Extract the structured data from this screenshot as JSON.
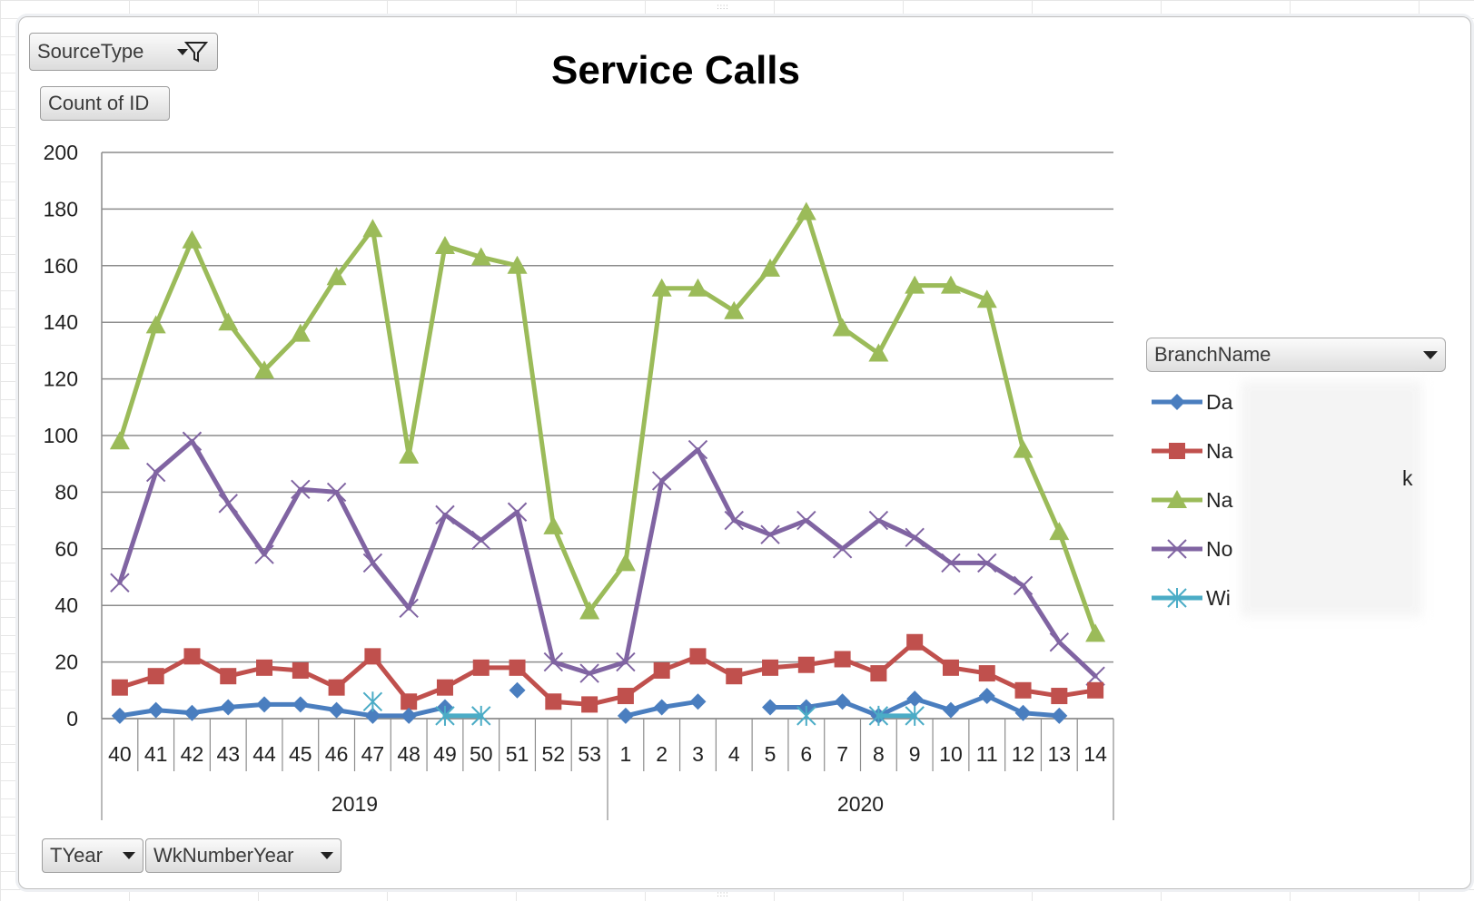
{
  "field_buttons": {
    "source_type": "SourceType",
    "count_of_id": "Count of ID",
    "tyear": "TYear",
    "wk_number_year": "WkNumberYear"
  },
  "legend": {
    "header": "BranchName",
    "items": [
      {
        "label": "Da",
        "color": "#4a7ebf",
        "marker": "diamond"
      },
      {
        "label": "Na",
        "color": "#c0504d",
        "marker": "square"
      },
      {
        "label": "Na",
        "color": "#9bbb59",
        "marker": "triangle",
        "tail": "k"
      },
      {
        "label": "No",
        "color": "#8064a2",
        "marker": "x"
      },
      {
        "label": "Wi",
        "color": "#4bacc6",
        "marker": "star"
      }
    ]
  },
  "chart_data": {
    "type": "line",
    "title": "Service Calls",
    "ylim": [
      0,
      200
    ],
    "yticks": [
      0,
      20,
      40,
      60,
      80,
      100,
      120,
      140,
      160,
      180,
      200
    ],
    "grid": true,
    "legend_position": "right",
    "categories": [
      "40",
      "41",
      "42",
      "43",
      "44",
      "45",
      "46",
      "47",
      "48",
      "49",
      "50",
      "51",
      "52",
      "53",
      "1",
      "2",
      "3",
      "4",
      "5",
      "6",
      "7",
      "8",
      "9",
      "10",
      "11",
      "12",
      "13",
      "14"
    ],
    "groups": [
      {
        "label": "2019",
        "count": 14
      },
      {
        "label": "2020",
        "count": 14
      }
    ],
    "series": [
      {
        "name": "Da",
        "color": "#4a7ebf",
        "marker": "diamond",
        "values": [
          1,
          3,
          2,
          4,
          5,
          5,
          3,
          1,
          1,
          4,
          null,
          10,
          null,
          null,
          1,
          4,
          6,
          null,
          4,
          4,
          6,
          1,
          7,
          3,
          8,
          2,
          1,
          null
        ]
      },
      {
        "name": "Na",
        "color": "#c0504d",
        "marker": "square",
        "values": [
          11,
          15,
          22,
          15,
          18,
          17,
          11,
          22,
          6,
          11,
          18,
          18,
          6,
          5,
          8,
          17,
          22,
          15,
          18,
          19,
          21,
          16,
          27,
          18,
          16,
          10,
          8,
          10
        ]
      },
      {
        "name": "Na",
        "color": "#9bbb59",
        "marker": "triangle",
        "values": [
          98,
          139,
          169,
          140,
          123,
          136,
          156,
          173,
          93,
          167,
          163,
          160,
          68,
          38,
          55,
          152,
          152,
          144,
          159,
          179,
          138,
          129,
          153,
          153,
          148,
          95,
          66,
          30
        ]
      },
      {
        "name": "No",
        "color": "#8064a2",
        "marker": "x",
        "values": [
          48,
          87,
          98,
          76,
          58,
          81,
          80,
          55,
          39,
          72,
          63,
          73,
          20,
          16,
          20,
          84,
          95,
          70,
          65,
          70,
          60,
          70,
          64,
          55,
          55,
          47,
          27,
          15
        ]
      },
      {
        "name": "Wi",
        "color": "#4bacc6",
        "marker": "star",
        "values": [
          null,
          null,
          null,
          null,
          null,
          null,
          null,
          6,
          null,
          1,
          1,
          null,
          null,
          null,
          null,
          null,
          null,
          null,
          null,
          1,
          null,
          1,
          1,
          null,
          null,
          null,
          null,
          null
        ]
      }
    ]
  }
}
